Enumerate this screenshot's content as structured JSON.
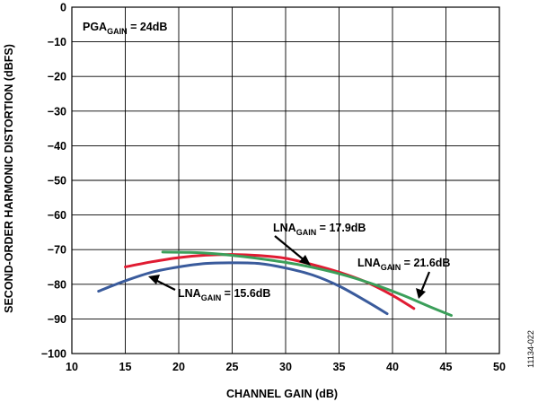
{
  "chart_data": {
    "type": "line",
    "xlabel": "CHANNEL GAIN (dB)",
    "ylabel": "SECOND-ORDER HARMONIC DISTORTION (dBFS)",
    "xlim": [
      10,
      50
    ],
    "ylim": [
      -100,
      0
    ],
    "x_ticks": [
      "10",
      "15",
      "20",
      "25",
      "30",
      "35",
      "40",
      "45",
      "50"
    ],
    "y_ticks": [
      "0",
      "−10",
      "−20",
      "−30",
      "−40",
      "−50",
      "−60",
      "−70",
      "−80",
      "−90",
      "−100"
    ],
    "grid": true,
    "legend": "none",
    "series": [
      {
        "color": "#3a5b9c",
        "x": [
          12.5,
          15,
          17.5,
          20,
          22.5,
          25,
          27.5,
          30,
          32.5,
          35,
          37.5,
          39.5
        ],
        "y": [
          -82,
          -79,
          -76.5,
          -75,
          -74,
          -73.8,
          -74,
          -75.3,
          -77.3,
          -80.5,
          -84.8,
          -88.5
        ]
      },
      {
        "color": "#e01b32",
        "x": [
          15,
          17.5,
          20,
          22.5,
          25,
          27.5,
          30,
          32.5,
          35,
          37.5,
          40,
          42
        ],
        "y": [
          -75,
          -73.5,
          -72.3,
          -71.6,
          -71.4,
          -71.7,
          -72.5,
          -74.3,
          -76.5,
          -79.3,
          -83.2,
          -87
        ]
      },
      {
        "color": "#3b9f5a",
        "x": [
          18.5,
          21,
          23.5,
          26,
          28.5,
          31,
          33.5,
          36,
          38.5,
          41,
          43.5,
          45.5
        ],
        "y": [
          -70.7,
          -70.8,
          -71.2,
          -72,
          -73,
          -74.2,
          -75.8,
          -77.8,
          -80.3,
          -83.2,
          -86.5,
          -89
        ]
      }
    ],
    "annotations": {
      "pga": {
        "prefix": "PGA",
        "sub": "GAIN",
        "suffix": " = 24dB"
      },
      "lna_156": {
        "prefix": "LNA",
        "sub": "GAIN",
        "suffix": " = 15.6dB"
      },
      "lna_179": {
        "prefix": "LNA",
        "sub": "GAIN",
        "suffix": " = 17.9dB"
      },
      "lna_216": {
        "prefix": "LNA",
        "sub": "GAIN",
        "suffix": " = 21.6dB"
      }
    },
    "figure_id": "11134-022"
  }
}
